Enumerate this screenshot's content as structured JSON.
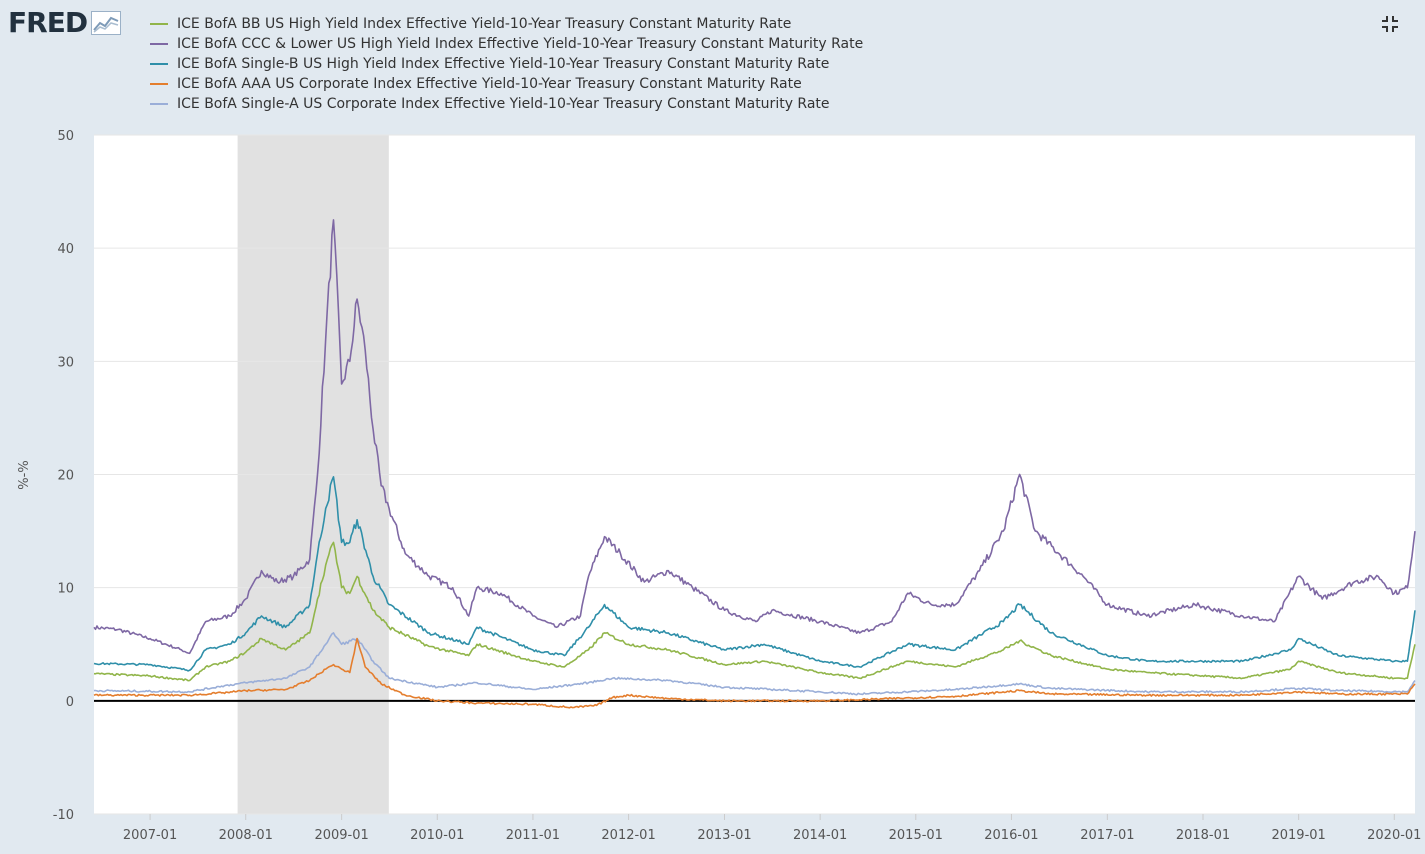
{
  "logo": {
    "text": "FRED",
    "icon": "fred-chart-icon"
  },
  "controls": {
    "collapse_icon": "collapse-icon"
  },
  "legend": [
    {
      "label": "ICE BofA BB US High Yield Index Effective Yield-10-Year Treasury Constant Maturity Rate",
      "color": "#91b54a"
    },
    {
      "label": "ICE BofA CCC & Lower US High Yield Index Effective Yield-10-Year Treasury Constant Maturity Rate",
      "color": "#7e68a4"
    },
    {
      "label": "ICE BofA Single-B US High Yield Index Effective Yield-10-Year Treasury Constant Maturity Rate",
      "color": "#2f8fa9"
    },
    {
      "label": "ICE BofA AAA US Corporate Index Effective Yield-10-Year Treasury Constant Maturity Rate",
      "color": "#e47e2e"
    },
    {
      "label": "ICE BofA Single-A US Corporate Index Effective Yield-10-Year Treasury Constant Maturity Rate",
      "color": "#9aaed8"
    }
  ],
  "chart_data": {
    "type": "line",
    "ylabel": "%-%",
    "ylim": [
      -10,
      50
    ],
    "yticks": [
      -10,
      0,
      10,
      20,
      30,
      40,
      50
    ],
    "xlim": [
      "2006-06-01",
      "2020-03-20"
    ],
    "xticks": [
      "2007-01",
      "2008-01",
      "2009-01",
      "2010-01",
      "2011-01",
      "2012-01",
      "2013-01",
      "2014-01",
      "2015-01",
      "2016-01",
      "2017-01",
      "2018-01",
      "2019-01",
      "2020-01"
    ],
    "recession": [
      "2007-12-01",
      "2009-06-30"
    ],
    "zero_line": true,
    "grid": true,
    "series": [
      {
        "name": "ICE BofA CCC & Lower US High Yield Index Effective Yield-10-Year Treasury Constant Maturity Rate",
        "color": "#7e68a4",
        "points": [
          [
            "2006-06-01",
            6.5
          ],
          [
            "2006-09-01",
            6.3
          ],
          [
            "2007-01-01",
            5.5
          ],
          [
            "2007-05-01",
            4.5
          ],
          [
            "2007-06-01",
            4.2
          ],
          [
            "2007-08-01",
            7.0
          ],
          [
            "2007-11-01",
            7.5
          ],
          [
            "2008-01-01",
            9.0
          ],
          [
            "2008-03-01",
            11.5
          ],
          [
            "2008-05-01",
            10.5
          ],
          [
            "2008-07-01",
            11.0
          ],
          [
            "2008-09-01",
            12.5
          ],
          [
            "2008-10-01",
            20.0
          ],
          [
            "2008-11-01",
            32.0
          ],
          [
            "2008-12-01",
            42.5
          ],
          [
            "2009-01-01",
            28.0
          ],
          [
            "2009-02-01",
            30.0
          ],
          [
            "2009-03-01",
            35.5
          ],
          [
            "2009-04-01",
            31.0
          ],
          [
            "2009-05-01",
            24.0
          ],
          [
            "2009-06-01",
            19.0
          ],
          [
            "2009-07-01",
            17.0
          ],
          [
            "2009-09-01",
            13.0
          ],
          [
            "2009-12-01",
            11.0
          ],
          [
            "2010-03-01",
            10.0
          ],
          [
            "2010-05-01",
            7.5
          ],
          [
            "2010-06-01",
            10.0
          ],
          [
            "2010-09-01",
            9.5
          ],
          [
            "2011-01-01",
            7.5
          ],
          [
            "2011-04-01",
            6.5
          ],
          [
            "2011-07-01",
            7.5
          ],
          [
            "2011-08-01",
            11.0
          ],
          [
            "2011-10-01",
            14.5
          ],
          [
            "2011-12-01",
            13.0
          ],
          [
            "2012-03-01",
            10.5
          ],
          [
            "2012-06-01",
            11.5
          ],
          [
            "2012-09-01",
            10.0
          ],
          [
            "2013-01-01",
            8.0
          ],
          [
            "2013-05-01",
            7.0
          ],
          [
            "2013-07-01",
            8.0
          ],
          [
            "2014-01-01",
            7.0
          ],
          [
            "2014-06-01",
            6.0
          ],
          [
            "2014-10-01",
            7.0
          ],
          [
            "2014-12-01",
            9.5
          ],
          [
            "2015-03-01",
            8.5
          ],
          [
            "2015-06-01",
            8.5
          ],
          [
            "2015-09-01",
            11.5
          ],
          [
            "2015-12-01",
            15.0
          ],
          [
            "2016-02-01",
            20.0
          ],
          [
            "2016-04-01",
            15.0
          ],
          [
            "2016-07-01",
            13.0
          ],
          [
            "2016-10-01",
            11.0
          ],
          [
            "2017-01-01",
            8.5
          ],
          [
            "2017-06-01",
            7.5
          ],
          [
            "2017-12-01",
            8.5
          ],
          [
            "2018-06-01",
            7.5
          ],
          [
            "2018-10-01",
            7.0
          ],
          [
            "2019-01-01",
            11.0
          ],
          [
            "2019-04-01",
            9.0
          ],
          [
            "2019-08-01",
            10.5
          ],
          [
            "2019-11-01",
            11.0
          ],
          [
            "2020-01-01",
            9.5
          ],
          [
            "2020-02-20",
            10.0
          ],
          [
            "2020-03-20",
            15.0
          ]
        ]
      },
      {
        "name": "ICE BofA Single-B US High Yield Index Effective Yield-10-Year Treasury Constant Maturity Rate",
        "color": "#2f8fa9",
        "points": [
          [
            "2006-06-01",
            3.3
          ],
          [
            "2007-01-01",
            3.2
          ],
          [
            "2007-06-01",
            2.7
          ],
          [
            "2007-08-01",
            4.5
          ],
          [
            "2007-11-01",
            5.0
          ],
          [
            "2008-01-01",
            6.0
          ],
          [
            "2008-03-01",
            7.5
          ],
          [
            "2008-06-01",
            6.5
          ],
          [
            "2008-09-01",
            8.5
          ],
          [
            "2008-10-01",
            13.0
          ],
          [
            "2008-11-01",
            17.0
          ],
          [
            "2008-12-01",
            19.8
          ],
          [
            "2009-01-01",
            14.0
          ],
          [
            "2009-02-01",
            14.0
          ],
          [
            "2009-03-01",
            16.0
          ],
          [
            "2009-05-01",
            11.0
          ],
          [
            "2009-07-01",
            8.5
          ],
          [
            "2009-12-01",
            6.0
          ],
          [
            "2010-05-01",
            5.0
          ],
          [
            "2010-06-01",
            6.5
          ],
          [
            "2011-01-01",
            4.5
          ],
          [
            "2011-05-01",
            4.0
          ],
          [
            "2011-08-01",
            6.5
          ],
          [
            "2011-10-01",
            8.5
          ],
          [
            "2012-01-01",
            6.5
          ],
          [
            "2012-06-01",
            6.0
          ],
          [
            "2013-01-01",
            4.5
          ],
          [
            "2013-06-01",
            5.0
          ],
          [
            "2014-01-01",
            3.5
          ],
          [
            "2014-06-01",
            3.0
          ],
          [
            "2014-12-01",
            5.0
          ],
          [
            "2015-06-01",
            4.5
          ],
          [
            "2015-12-01",
            7.0
          ],
          [
            "2016-02-01",
            8.5
          ],
          [
            "2016-06-01",
            6.0
          ],
          [
            "2017-01-01",
            4.0
          ],
          [
            "2017-06-01",
            3.5
          ],
          [
            "2018-06-01",
            3.5
          ],
          [
            "2018-12-01",
            4.5
          ],
          [
            "2019-01-01",
            5.5
          ],
          [
            "2019-06-01",
            4.0
          ],
          [
            "2020-01-01",
            3.5
          ],
          [
            "2020-02-20",
            3.5
          ],
          [
            "2020-03-20",
            8.0
          ]
        ]
      },
      {
        "name": "ICE BofA BB US High Yield Index Effective Yield-10-Year Treasury Constant Maturity Rate",
        "color": "#91b54a",
        "points": [
          [
            "2006-06-01",
            2.4
          ],
          [
            "2007-01-01",
            2.2
          ],
          [
            "2007-06-01",
            1.8
          ],
          [
            "2007-08-01",
            3.0
          ],
          [
            "2007-11-01",
            3.5
          ],
          [
            "2008-01-01",
            4.3
          ],
          [
            "2008-03-01",
            5.5
          ],
          [
            "2008-06-01",
            4.5
          ],
          [
            "2008-09-01",
            6.0
          ],
          [
            "2008-10-01",
            9.0
          ],
          [
            "2008-11-01",
            12.0
          ],
          [
            "2008-12-01",
            14.0
          ],
          [
            "2009-01-01",
            10.0
          ],
          [
            "2009-02-01",
            9.5
          ],
          [
            "2009-03-01",
            11.0
          ],
          [
            "2009-05-01",
            8.0
          ],
          [
            "2009-07-01",
            6.5
          ],
          [
            "2009-12-01",
            4.8
          ],
          [
            "2010-05-01",
            4.0
          ],
          [
            "2010-06-01",
            5.0
          ],
          [
            "2011-01-01",
            3.5
          ],
          [
            "2011-05-01",
            3.0
          ],
          [
            "2011-08-01",
            4.5
          ],
          [
            "2011-10-01",
            6.0
          ],
          [
            "2012-01-01",
            5.0
          ],
          [
            "2012-06-01",
            4.5
          ],
          [
            "2013-01-01",
            3.2
          ],
          [
            "2013-06-01",
            3.5
          ],
          [
            "2014-01-01",
            2.5
          ],
          [
            "2014-06-01",
            2.0
          ],
          [
            "2014-12-01",
            3.5
          ],
          [
            "2015-06-01",
            3.0
          ],
          [
            "2015-12-01",
            4.5
          ],
          [
            "2016-02-01",
            5.3
          ],
          [
            "2016-06-01",
            4.0
          ],
          [
            "2017-01-01",
            2.8
          ],
          [
            "2017-06-01",
            2.5
          ],
          [
            "2018-06-01",
            2.0
          ],
          [
            "2018-12-01",
            2.8
          ],
          [
            "2019-01-01",
            3.5
          ],
          [
            "2019-06-01",
            2.5
          ],
          [
            "2020-01-01",
            2.0
          ],
          [
            "2020-02-20",
            2.0
          ],
          [
            "2020-03-20",
            5.0
          ]
        ]
      },
      {
        "name": "ICE BofA Single-A US Corporate Index Effective Yield-10-Year Treasury Constant Maturity Rate",
        "color": "#9aaed8",
        "points": [
          [
            "2006-06-01",
            0.9
          ],
          [
            "2007-06-01",
            0.8
          ],
          [
            "2007-10-01",
            1.3
          ],
          [
            "2008-01-01",
            1.6
          ],
          [
            "2008-06-01",
            2.0
          ],
          [
            "2008-09-01",
            3.0
          ],
          [
            "2008-11-01",
            5.0
          ],
          [
            "2008-12-01",
            6.0
          ],
          [
            "2009-01-01",
            5.0
          ],
          [
            "2009-03-01",
            5.5
          ],
          [
            "2009-05-01",
            3.5
          ],
          [
            "2009-07-01",
            2.0
          ],
          [
            "2010-01-01",
            1.2
          ],
          [
            "2010-06-01",
            1.6
          ],
          [
            "2011-01-01",
            1.0
          ],
          [
            "2011-08-01",
            1.6
          ],
          [
            "2011-11-01",
            2.0
          ],
          [
            "2012-06-01",
            1.8
          ],
          [
            "2013-01-01",
            1.2
          ],
          [
            "2014-01-01",
            0.8
          ],
          [
            "2014-06-01",
            0.6
          ],
          [
            "2015-06-01",
            1.0
          ],
          [
            "2016-02-01",
            1.5
          ],
          [
            "2016-06-01",
            1.1
          ],
          [
            "2017-06-01",
            0.8
          ],
          [
            "2018-06-01",
            0.8
          ],
          [
            "2019-01-01",
            1.1
          ],
          [
            "2019-06-01",
            0.9
          ],
          [
            "2020-02-20",
            0.8
          ],
          [
            "2020-03-20",
            1.8
          ]
        ]
      },
      {
        "name": "ICE BofA AAA US Corporate Index Effective Yield-10-Year Treasury Constant Maturity Rate",
        "color": "#e47e2e",
        "points": [
          [
            "2006-06-01",
            0.5
          ],
          [
            "2007-06-01",
            0.5
          ],
          [
            "2007-10-01",
            0.7
          ],
          [
            "2008-01-01",
            0.9
          ],
          [
            "2008-06-01",
            1.0
          ],
          [
            "2008-09-01",
            1.8
          ],
          [
            "2008-11-01",
            2.8
          ],
          [
            "2008-12-01",
            3.2
          ],
          [
            "2009-01-01",
            2.8
          ],
          [
            "2009-02-01",
            2.5
          ],
          [
            "2009-03-01",
            5.5
          ],
          [
            "2009-04-01",
            3.0
          ],
          [
            "2009-06-01",
            1.5
          ],
          [
            "2009-09-01",
            0.5
          ],
          [
            "2010-01-01",
            0.0
          ],
          [
            "2010-06-01",
            -0.2
          ],
          [
            "2011-01-01",
            -0.3
          ],
          [
            "2011-06-01",
            -0.6
          ],
          [
            "2011-09-01",
            -0.4
          ],
          [
            "2011-11-01",
            0.3
          ],
          [
            "2012-01-01",
            0.5
          ],
          [
            "2012-06-01",
            0.2
          ],
          [
            "2013-01-01",
            0.0
          ],
          [
            "2014-01-01",
            0.0
          ],
          [
            "2014-06-01",
            0.1
          ],
          [
            "2015-06-01",
            0.4
          ],
          [
            "2016-02-01",
            0.9
          ],
          [
            "2016-06-01",
            0.6
          ],
          [
            "2017-06-01",
            0.5
          ],
          [
            "2018-06-01",
            0.5
          ],
          [
            "2019-01-01",
            0.8
          ],
          [
            "2019-06-01",
            0.6
          ],
          [
            "2020-02-20",
            0.6
          ],
          [
            "2020-03-20",
            1.5
          ]
        ]
      }
    ]
  }
}
